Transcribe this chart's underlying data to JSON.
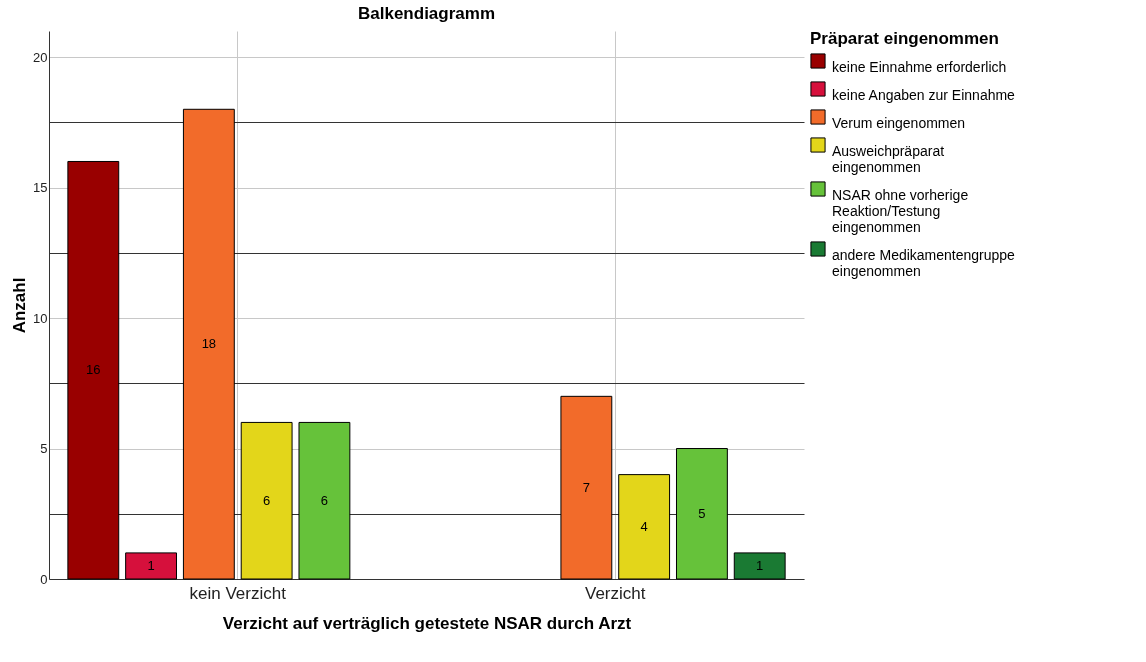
{
  "chart_data": {
    "type": "bar",
    "title": "Balkendiagramm",
    "xlabel": "Verzicht auf verträglich getestete NSAR durch Arzt",
    "ylabel": "Anzahl",
    "legend_title": "Präparat eingenommen",
    "categories": [
      "kein Verzicht",
      "Verzicht"
    ],
    "series": [
      {
        "name": "keine Einnahme erforderlich",
        "color": "#990000",
        "values": [
          16,
          null
        ]
      },
      {
        "name": "keine Angaben zur Einnahme",
        "color": "#d6103c",
        "values": [
          1,
          null
        ]
      },
      {
        "name": "Verum eingenommen",
        "color": "#f26b2a",
        "values": [
          18,
          7
        ]
      },
      {
        "name": "Ausweichpräparat eingenommen",
        "color": "#e3d61a",
        "values": [
          6,
          4
        ]
      },
      {
        "name": "NSAR ohne vorherige Reaktion/Testung eingenommen",
        "color": "#66c23a",
        "values": [
          6,
          5
        ]
      },
      {
        "name": "andere Medikamentengruppe eingenommen",
        "color": "#1a7a33",
        "values": [
          null,
          1
        ]
      }
    ],
    "ylim": [
      0,
      21
    ],
    "yticks": [
      0,
      {
        "value": 2.5,
        "label": null
      },
      5,
      {
        "value": 7.5,
        "label": null
      },
      10,
      {
        "value": 12.5,
        "label": null
      },
      15,
      {
        "value": 17.5,
        "label": null
      },
      20
    ],
    "grid": true,
    "legend": "top right",
    "data_labels": true
  }
}
